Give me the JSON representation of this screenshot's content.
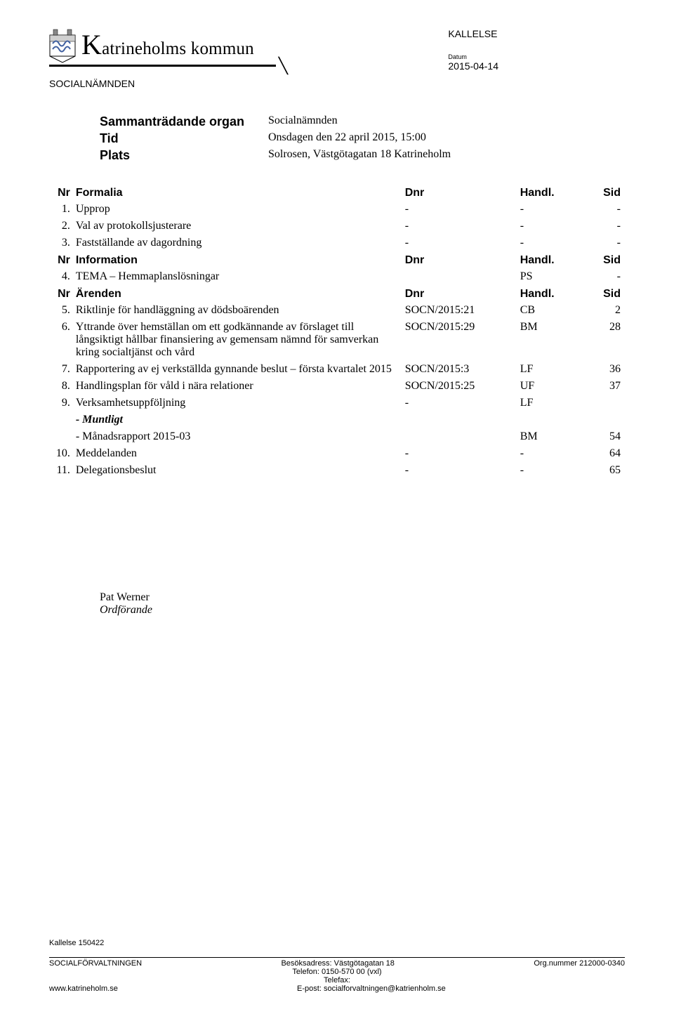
{
  "header": {
    "org_name_rest": "atrineholms kommun",
    "kallelse": "KALLELSE",
    "datum_label": "Datum",
    "datum_value": "2015-04-14",
    "sub_org": "SOCIALNÄMNDEN"
  },
  "meeting": {
    "rows": [
      {
        "label": "Sammanträdande organ",
        "value": "Socialnämnden"
      },
      {
        "label": "Tid",
        "value": "Onsdagen den 22 april 2015, 15:00"
      },
      {
        "label": "Plats",
        "value": "Solrosen, Västgötagatan 18 Katrineholm"
      }
    ]
  },
  "columns": {
    "nr": "Nr",
    "dnr": "Dnr",
    "handl": "Handl.",
    "sid": "Sid"
  },
  "sections": [
    {
      "title": "Formalia",
      "items": [
        {
          "nr": "1.",
          "title": "Upprop",
          "dnr": "-",
          "handl": "-",
          "sid": "-"
        },
        {
          "nr": "2.",
          "title": "Val av protokollsjusterare",
          "dnr": "-",
          "handl": "-",
          "sid": "-"
        },
        {
          "nr": "3.",
          "title": "Fastställande av dagordning",
          "dnr": "-",
          "handl": "-",
          "sid": "-"
        }
      ]
    },
    {
      "title": "Information",
      "items": [
        {
          "nr": "4.",
          "title": "TEMA – Hemmaplanslösningar",
          "dnr": "",
          "handl": "PS",
          "sid": "-"
        }
      ]
    },
    {
      "title": "Ärenden",
      "items": [
        {
          "nr": "5.",
          "title": "Riktlinje för handläggning av dödsboärenden",
          "dnr": "SOCN/2015:21",
          "handl": "CB",
          "sid": "2"
        },
        {
          "nr": "6.",
          "title": "Yttrande över hemställan om ett godkännande av förslaget till långsiktigt hållbar finansiering av gemensam nämnd för samverkan kring socialtjänst och vård",
          "dnr": "SOCN/2015:29",
          "handl": "BM",
          "sid": "28"
        },
        {
          "nr": "7.",
          "title": "Rapportering av ej verkställda gynnande beslut – första kvartalet 2015",
          "dnr": "SOCN/2015:3",
          "handl": "LF",
          "sid": "36"
        },
        {
          "nr": "8.",
          "title": "Handlingsplan för våld i nära relationer",
          "dnr": "SOCN/2015:25",
          "handl": "UF",
          "sid": "37"
        },
        {
          "nr": "9.",
          "title": "Verksamhetsuppföljning",
          "dnr": "-",
          "handl": "LF",
          "sid": "",
          "subrows": [
            {
              "title": "- Muntligt",
              "handl": "",
              "sid": "",
              "italic_bold": true
            },
            {
              "title": "- Månadsrapport 2015-03",
              "handl": "BM",
              "sid": "54",
              "italic_bold": false
            }
          ]
        },
        {
          "nr": "10.",
          "title": "Meddelanden",
          "dnr": "-",
          "handl": "-",
          "sid": "64"
        },
        {
          "nr": "11.",
          "title": "Delegationsbeslut",
          "dnr": "-",
          "handl": "-",
          "sid": "65"
        }
      ]
    }
  ],
  "signature": {
    "name": "Pat Werner",
    "role": "Ordförande"
  },
  "footer": {
    "ref": "Kallelse 150422",
    "left_org": "SOCIALFÖRVALTNINGEN",
    "besok": "Besöksadress: Västgötagatan 18",
    "tel": "Telefon: 0150-570 00 (vxl)",
    "fax": "Telefax:",
    "left_url": "www.katrineholm.se",
    "epost": "E-post: socialforvaltningen@katrienholm.se",
    "orgnr": "Org.nummer 212000-0340"
  }
}
